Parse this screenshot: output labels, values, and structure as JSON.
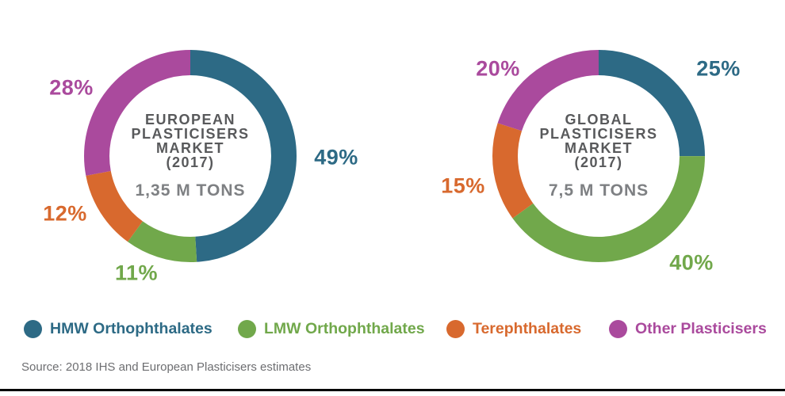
{
  "colors": {
    "teal": "#2d6a85",
    "green": "#71a84b",
    "orange": "#d8692e",
    "purple": "#aa4a9d",
    "title_gray": "#58595b",
    "volume_gray": "#7e8083",
    "source_gray": "#6d6e71"
  },
  "charts": [
    {
      "id": "european",
      "title_lines": [
        "EUROPEAN",
        "PLASTICISERS",
        "MARKET",
        "(2017)"
      ],
      "volume": "1,35 M TONS",
      "segments": [
        {
          "name": "HMW Orthophthalates",
          "pct": 49,
          "label": "49%",
          "color": "#2d6a85"
        },
        {
          "name": "LMW Orthophthalates",
          "pct": 11,
          "label": "11%",
          "color": "#71a84b"
        },
        {
          "name": "Terephthalates",
          "pct": 12,
          "label": "12%",
          "color": "#d8692e"
        },
        {
          "name": "Other Plasticisers",
          "pct": 28,
          "label": "28%",
          "color": "#aa4a9d"
        }
      ]
    },
    {
      "id": "global",
      "title_lines": [
        "GLOBAL",
        "PLASTICISERS",
        "MARKET",
        "(2017)"
      ],
      "volume": "7,5 M TONS",
      "segments": [
        {
          "name": "HMW Orthophthalates",
          "pct": 25,
          "label": "25%",
          "color": "#2d6a85"
        },
        {
          "name": "LMW Orthophthalates",
          "pct": 40,
          "label": "40%",
          "color": "#71a84b"
        },
        {
          "name": "Terephthalates",
          "pct": 15,
          "label": "15%",
          "color": "#d8692e"
        },
        {
          "name": "Other Plasticisers",
          "pct": 20,
          "label": "20%",
          "color": "#aa4a9d"
        }
      ]
    }
  ],
  "legend": [
    {
      "label": "HMW Orthophthalates",
      "color": "#2d6a85"
    },
    {
      "label": "LMW Orthophthalates",
      "color": "#71a84b"
    },
    {
      "label": "Terephthalates",
      "color": "#d8692e"
    },
    {
      "label": "Other Plasticisers",
      "color": "#aa4a9d"
    }
  ],
  "source": "Source: 2018 IHS and European Plasticisers estimates",
  "chart_data": [
    {
      "type": "pie",
      "subtype": "donut",
      "title": "EUROPEAN PLASTICISERS MARKET (2017)",
      "center_label": "1,35 M TONS",
      "categories": [
        "HMW Orthophthalates",
        "LMW Orthophthalates",
        "Terephthalates",
        "Other Plasticisers"
      ],
      "values": [
        49,
        11,
        12,
        28
      ],
      "unit": "%",
      "colors": [
        "#2d6a85",
        "#71a84b",
        "#d8692e",
        "#aa4a9d"
      ],
      "start_angle_deg": 0,
      "direction": "clockwise",
      "legend_position": "bottom"
    },
    {
      "type": "pie",
      "subtype": "donut",
      "title": "GLOBAL PLASTICISERS MARKET (2017)",
      "center_label": "7,5 M TONS",
      "categories": [
        "HMW Orthophthalates",
        "LMW Orthophthalates",
        "Terephthalates",
        "Other Plasticisers"
      ],
      "values": [
        25,
        40,
        15,
        20
      ],
      "unit": "%",
      "colors": [
        "#2d6a85",
        "#71a84b",
        "#d8692e",
        "#aa4a9d"
      ],
      "start_angle_deg": 0,
      "direction": "clockwise",
      "legend_position": "bottom"
    }
  ]
}
